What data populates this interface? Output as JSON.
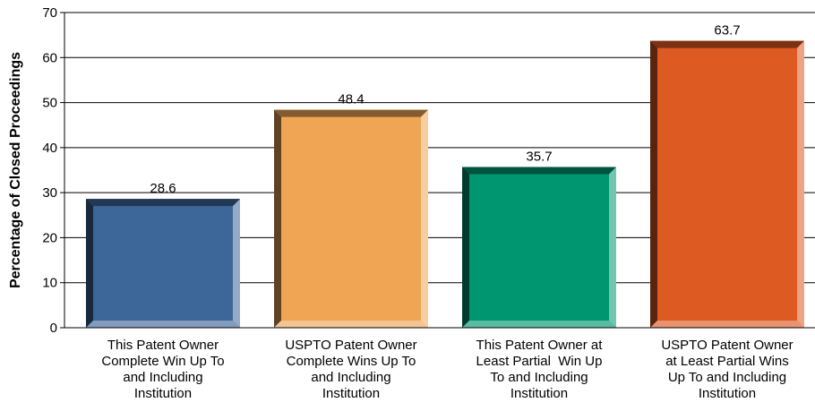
{
  "chart_data": {
    "type": "bar",
    "y_label": "Percentage of Closed Proceedings",
    "categories": [
      "This Patent Owner\nComplete Win Up To\nand Including\nInstitution",
      "USPTO Patent Owner\nComplete Wins Up To\nand Including\nInstitution",
      "This Patent Owner at\nLeast Partial  Win Up\nTo and Including\nInstitution",
      "USPTO Patent Owner\nat Least Partial Wins\nUp To and Including\nInstitution"
    ],
    "values": [
      28.6,
      48.4,
      35.7,
      63.7
    ],
    "colors": [
      "#3d6699",
      "#f0a555",
      "#009670",
      "#dd5a22"
    ],
    "ylim": [
      0,
      70
    ],
    "yticks": [
      0,
      10,
      20,
      30,
      40,
      50,
      60,
      70
    ],
    "grid": true
  }
}
